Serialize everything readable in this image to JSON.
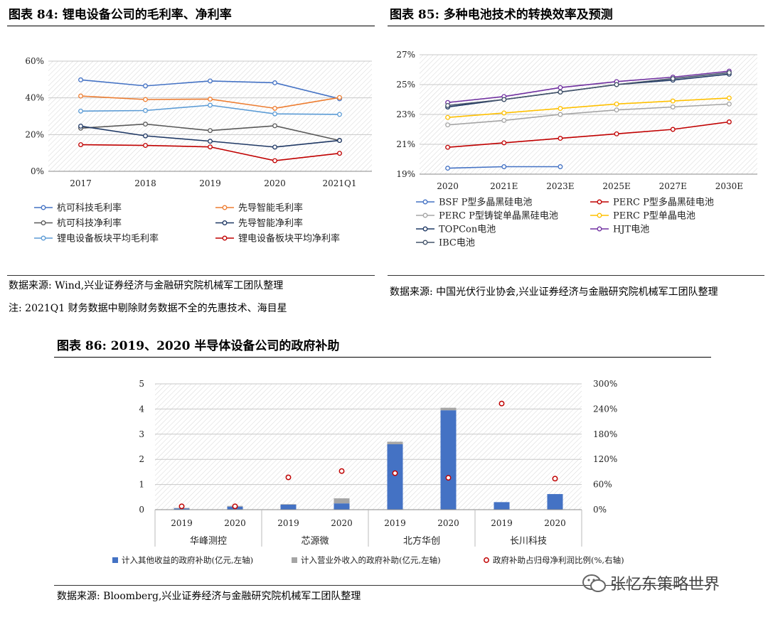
{
  "fig84": {
    "title": "图表 84:  锂电设备公司的毛利率、净利率",
    "source": "数据来源:  Wind,兴业证券经济与金融研究院机械军工团队整理",
    "note": "注:  2021Q1 财务数据中剔除财务数据不全的先惠技术、海目星"
  },
  "fig85": {
    "title": "图表 85:  多种电池技术的转换效率及预测",
    "source": "数据来源:  中国光伏行业协会,兴业证券经济与金融研究院机械军工团队整理"
  },
  "fig86": {
    "title": "图表 86:  2019、2020 半导体设备公司的政府补助",
    "source": "数据来源:  Bloomberg,兴业证券经济与金融研究院机械军工团队整理"
  },
  "watermark": "张忆东策略世界",
  "chart_data": [
    {
      "id": "fig84",
      "type": "line",
      "title": "锂电设备公司的毛利率、净利率",
      "categories": [
        "2017",
        "2018",
        "2019",
        "2020",
        "2021Q1"
      ],
      "ylim": [
        0,
        60
      ],
      "yticks": [
        "0%",
        "20%",
        "40%",
        "60%"
      ],
      "grid": true,
      "legend_position": "bottom",
      "series": [
        {
          "name": "杭可科技毛利率",
          "color": "#4472C4",
          "values": [
            49.8,
            46.5,
            49.2,
            48.2,
            39.5
          ]
        },
        {
          "name": "先导智能毛利率",
          "color": "#ED7D31",
          "values": [
            41.0,
            39.1,
            39.3,
            34.3,
            40.2
          ]
        },
        {
          "name": "杭可科技净利率",
          "color": "#595959",
          "values": [
            23.5,
            25.7,
            22.2,
            24.8,
            16.8
          ]
        },
        {
          "name": "先导智能净利率",
          "color": "#1F3864",
          "values": [
            24.6,
            19.3,
            16.4,
            13.2,
            16.8
          ]
        },
        {
          "name": "锂电设备板块平均毛利率",
          "color": "#5B9BD5",
          "values": [
            32.8,
            33.1,
            36.0,
            31.3,
            31.0
          ]
        },
        {
          "name": "锂电设备板块平均净利率",
          "color": "#C00000",
          "values": [
            14.5,
            14.1,
            13.3,
            5.8,
            9.8
          ]
        }
      ]
    },
    {
      "id": "fig85",
      "type": "line",
      "title": "多种电池技术的转换效率及预测",
      "categories": [
        "2020",
        "2021E",
        "2023E",
        "2025E",
        "2027E",
        "2030E"
      ],
      "ylim": [
        19,
        27
      ],
      "yticks": [
        "19%",
        "21%",
        "23%",
        "25%",
        "27%"
      ],
      "grid": true,
      "legend_position": "bottom",
      "series": [
        {
          "name": "BSF P型多晶黑硅电池",
          "color": "#4472C4",
          "values": [
            19.4,
            19.5,
            19.5,
            null,
            null,
            null
          ]
        },
        {
          "name": "PERC P型多晶黑硅电池",
          "color": "#C00000",
          "values": [
            20.8,
            21.1,
            21.4,
            21.7,
            22.0,
            22.5
          ]
        },
        {
          "name": "PERC P型铸锭单晶黑硅电池",
          "color": "#A5A5A5",
          "values": [
            22.3,
            22.6,
            23.0,
            23.3,
            23.5,
            23.7
          ]
        },
        {
          "name": "PERC P型单晶电池",
          "color": "#FFC000",
          "values": [
            22.8,
            23.1,
            23.4,
            23.7,
            23.9,
            24.1
          ]
        },
        {
          "name": "TOPCon电池",
          "color": "#1F3864",
          "values": [
            23.5,
            24.0,
            24.5,
            25.0,
            25.3,
            25.7
          ]
        },
        {
          "name": "HJT电池",
          "color": "#7030A0",
          "values": [
            23.8,
            24.2,
            24.8,
            25.2,
            25.5,
            25.9
          ]
        },
        {
          "name": "IBC电池",
          "color": "#44546A",
          "values": [
            23.6,
            24.0,
            24.5,
            25.0,
            25.4,
            25.8
          ]
        }
      ]
    },
    {
      "id": "fig86",
      "type": "bar",
      "title": "2019、2020 半导体设备公司的政府补助",
      "categories": [
        "2019",
        "2020",
        "2019",
        "2020",
        "2019",
        "2020",
        "2019",
        "2020"
      ],
      "groups": [
        "华峰测控",
        "芯源微",
        "北方华创",
        "长川科技"
      ],
      "ylim": [
        0,
        5
      ],
      "yticks": [
        "0",
        "1",
        "2",
        "3",
        "4",
        "5"
      ],
      "y2lim": [
        0,
        300
      ],
      "y2ticks": [
        "0%",
        "60%",
        "120%",
        "180%",
        "240%",
        "300%"
      ],
      "grid": true,
      "legend_position": "bottom",
      "series": [
        {
          "name": "计入其他收益的政府补助(亿元,左轴)",
          "color": "#4472C4",
          "axis": "left",
          "kind": "bar_stack",
          "values": [
            0.05,
            0.12,
            0.2,
            0.25,
            2.6,
            3.95,
            0.3,
            0.62
          ]
        },
        {
          "name": "计入营业外收入的政府补助(亿元,左轴)",
          "color": "#A5A5A5",
          "axis": "left",
          "kind": "bar_stack",
          "values": [
            0.02,
            0.03,
            0.02,
            0.2,
            0.1,
            0.1,
            0.0,
            0.0
          ]
        },
        {
          "name": "政府补助占归母净利润比例(%,右轴)",
          "color": "#C00000",
          "axis": "right",
          "kind": "marker",
          "values": [
            8,
            8,
            77,
            92,
            87,
            76,
            253,
            74
          ]
        }
      ]
    }
  ]
}
